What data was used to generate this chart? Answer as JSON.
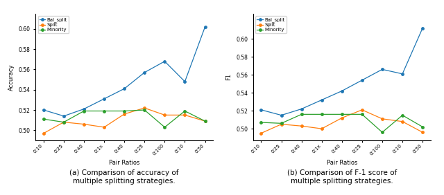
{
  "x_labels": [
    "0:10",
    "0:25",
    "0:40",
    "0:1x",
    "0:40",
    "0:25",
    "0:100",
    "0:10",
    "0:50"
  ],
  "acc_bal_split": [
    0.52,
    0.514,
    0.521,
    0.531,
    0.541,
    0.557,
    0.568,
    0.548,
    0.602
  ],
  "acc_split": [
    0.497,
    0.508,
    0.506,
    0.503,
    0.516,
    0.522,
    0.515,
    0.515,
    0.509
  ],
  "acc_minority": [
    0.511,
    0.508,
    0.519,
    0.519,
    0.519,
    0.52,
    0.503,
    0.519,
    0.509
  ],
  "f1_bal_split": [
    0.521,
    0.515,
    0.522,
    0.532,
    0.542,
    0.554,
    0.566,
    0.561,
    0.612
  ],
  "f1_split": [
    0.495,
    0.505,
    0.503,
    0.5,
    0.512,
    0.521,
    0.511,
    0.508,
    0.496
  ],
  "f1_minority": [
    0.507,
    0.506,
    0.516,
    0.516,
    0.516,
    0.516,
    0.496,
    0.515,
    0.502
  ],
  "color_bal_split": "#1f77b4",
  "color_split": "#ff7f0e",
  "color_minority": "#2ca02c",
  "legend_labels": [
    "Bal_split",
    "Split",
    "Minority"
  ],
  "xlabel": "Pair Ratios",
  "ylabel_left": "Accuracy",
  "ylabel_right": "F1",
  "caption_left": "(a) Comparison of accuracy of\nmultiple splitting strategies.",
  "caption_right": "(b) Comparison of F-1 score of\nmultiple splitting strategies.",
  "yticks_acc": [
    0.5,
    0.52,
    0.54,
    0.56,
    0.58,
    0.6
  ],
  "yticks_f1": [
    0.5,
    0.52,
    0.54,
    0.56,
    0.58,
    0.6
  ],
  "ylim_acc": [
    0.49,
    0.615
  ],
  "ylim_f1": [
    0.487,
    0.628
  ]
}
